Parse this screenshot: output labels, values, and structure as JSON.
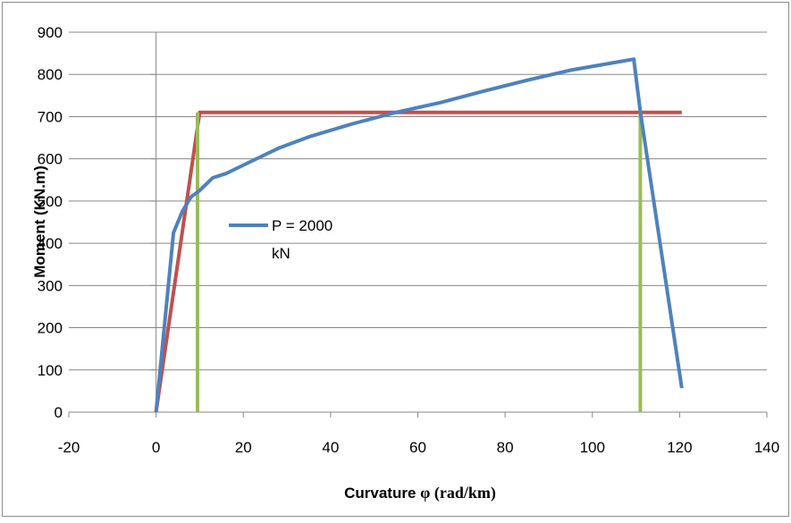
{
  "chart_data": {
    "type": "line",
    "title": "",
    "xlabel_main": "Curvature ",
    "xlabel_symbol": "φ (rad/km)",
    "ylabel": "Moment (KN.m)",
    "xlim": [
      -20,
      140
    ],
    "ylim": [
      0,
      900
    ],
    "x_ticks": [
      "-20",
      "0",
      "20",
      "40",
      "60",
      "80",
      "100",
      "120",
      "140"
    ],
    "y_ticks": [
      "0",
      "100",
      "200",
      "300",
      "400",
      "500",
      "600",
      "700",
      "800",
      "900"
    ],
    "grid": "horizontal",
    "legend_position": "center-left",
    "legend_label_line1": "P = 2000",
    "legend_label_line2": "kN",
    "series": [
      {
        "name": "P = 2000 kN",
        "color": "#4F81BD",
        "points": [
          [
            0,
            0
          ],
          [
            4,
            425
          ],
          [
            6,
            475
          ],
          [
            8,
            510
          ],
          [
            10,
            525
          ],
          [
            12,
            545
          ],
          [
            13,
            555
          ],
          [
            16,
            565
          ],
          [
            22,
            595
          ],
          [
            28,
            625
          ],
          [
            35,
            652
          ],
          [
            45,
            683
          ],
          [
            55,
            710
          ],
          [
            65,
            733
          ],
          [
            75,
            760
          ],
          [
            85,
            786
          ],
          [
            95,
            810
          ],
          [
            105,
            828
          ],
          [
            109.5,
            836
          ],
          [
            111,
            712
          ],
          [
            120.5,
            57
          ]
        ]
      },
      {
        "color": "#C0504D",
        "points": [
          [
            0,
            0
          ],
          [
            10,
            710
          ],
          [
            120.5,
            710
          ]
        ]
      },
      {
        "color": "#9BBB59",
        "points": [
          [
            9.5,
            0
          ],
          [
            9.5,
            710
          ]
        ]
      },
      {
        "color": "#9BBB59",
        "points": [
          [
            111,
            0
          ],
          [
            111,
            710
          ]
        ]
      }
    ]
  }
}
